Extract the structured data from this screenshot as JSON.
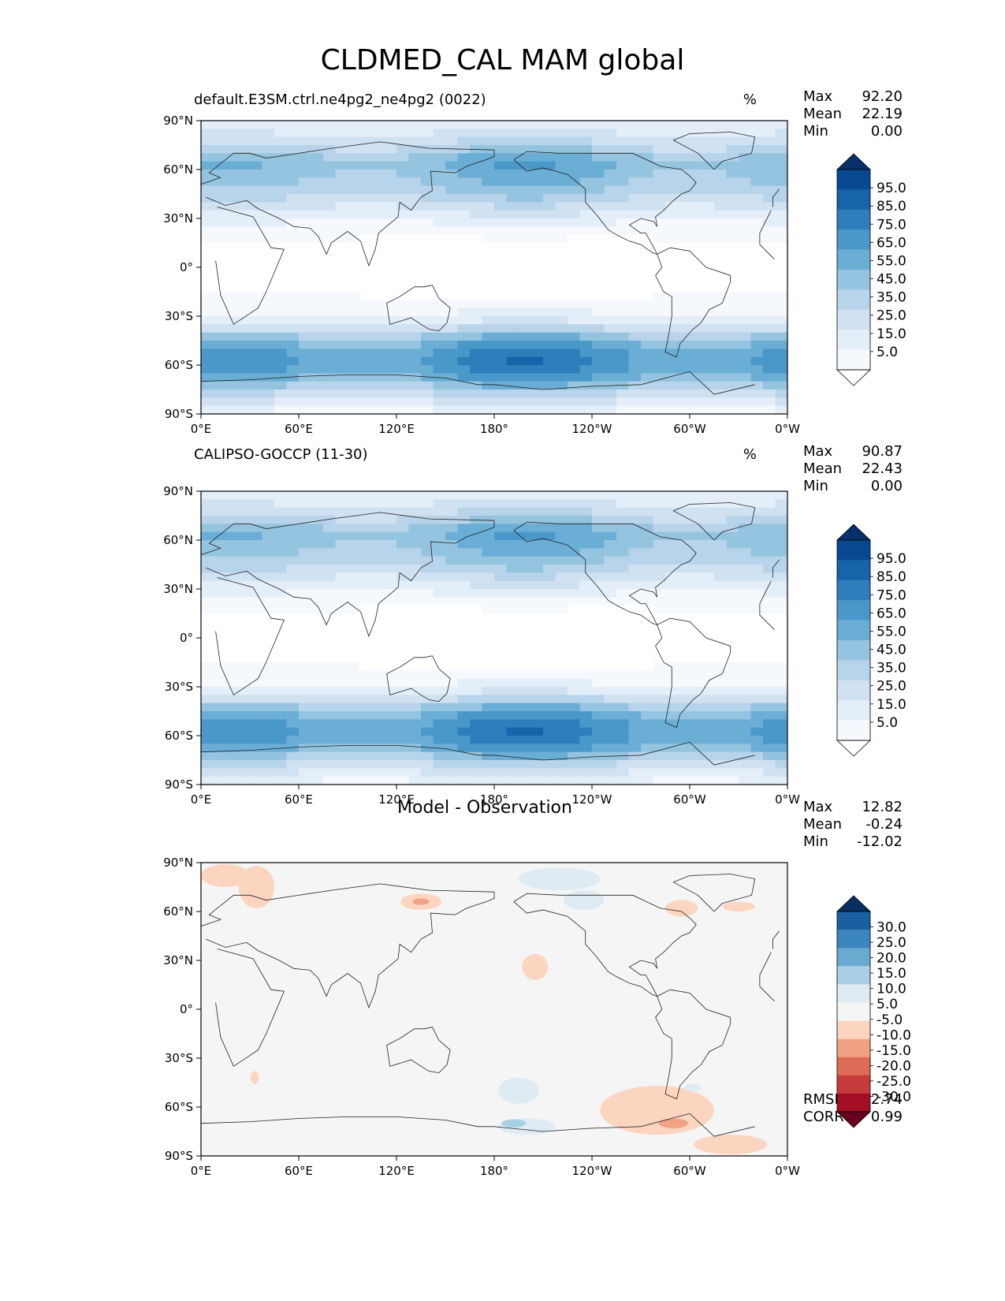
{
  "title": "CLDMED_CAL MAM global",
  "axes": {
    "lon_ticks": [
      "0°E",
      "60°E",
      "120°E",
      "180°",
      "120°W",
      "60°W",
      "0°W"
    ],
    "lat_ticks": [
      "90°N",
      "60°N",
      "30°N",
      "0°",
      "30°S",
      "60°S",
      "90°S"
    ]
  },
  "panels": [
    {
      "title": "default.E3SM.ctrl.ne4pg2_ne4pg2 (0022)",
      "unit": "%",
      "stats": [
        {
          "label": "Max",
          "value": "92.20"
        },
        {
          "label": "Mean",
          "value": "22.19"
        },
        {
          "label": "Min",
          "value": "0.00"
        }
      ],
      "colorbar_labels": [
        "95.0",
        "85.0",
        "75.0",
        "65.0",
        "55.0",
        "45.0",
        "35.0",
        "25.0",
        "15.0",
        "5.0"
      ]
    },
    {
      "title": "CALIPSO-GOCCP (11-30)",
      "unit": "%",
      "stats": [
        {
          "label": "Max",
          "value": "90.87"
        },
        {
          "label": "Mean",
          "value": "22.43"
        },
        {
          "label": "Min",
          "value": "0.00"
        }
      ],
      "colorbar_labels": [
        "95.0",
        "85.0",
        "75.0",
        "65.0",
        "55.0",
        "45.0",
        "35.0",
        "25.0",
        "15.0",
        "5.0"
      ]
    },
    {
      "title": "Model - Observation",
      "stats": [
        {
          "label": "Max",
          "value": "12.82"
        },
        {
          "label": "Mean",
          "value": "-0.24"
        },
        {
          "label": "Min",
          "value": "-12.02"
        }
      ],
      "colorbar_labels": [
        "30.0",
        "25.0",
        "20.0",
        "15.0",
        "10.0",
        "5.0",
        "-5.0",
        "-10.0",
        "-15.0",
        "-20.0",
        "-25.0",
        "-30.0"
      ],
      "extra_stats": [
        {
          "label": "RMSE",
          "value": "2.74"
        },
        {
          "label": "CORR",
          "value": "0.99"
        }
      ]
    }
  ],
  "chart_data": [
    {
      "type": "heatmap",
      "title": "default.E3SM.ctrl.ne4pg2_ne4pg2 (0022)",
      "unit": "%",
      "xlim": [
        0,
        360
      ],
      "ylim": [
        -90,
        90
      ],
      "levels": [
        0,
        5,
        15,
        25,
        35,
        45,
        55,
        65,
        75,
        85,
        95,
        100
      ],
      "colors": [
        "#ffffff",
        "#f5f9fe",
        "#e3eef9",
        "#d0e1f2",
        "#b7d4ea",
        "#94c4df",
        "#6aaed6",
        "#4a98c9",
        "#2e7ebc",
        "#1764ab",
        "#084a91",
        "#08306b"
      ],
      "zonal_profile": {
        "lat": [
          -90,
          -75,
          -65,
          -55,
          -45,
          -35,
          -25,
          -15,
          0,
          15,
          25,
          35,
          45,
          55,
          65,
          75,
          90
        ],
        "value": [
          10,
          40,
          65,
          70,
          55,
          25,
          10,
          5,
          3,
          5,
          12,
          25,
          40,
          50,
          55,
          35,
          15
        ]
      },
      "stats": {
        "max": 92.2,
        "mean": 22.19,
        "min": 0.0
      }
    },
    {
      "type": "heatmap",
      "title": "CALIPSO-GOCCP (11-30)",
      "unit": "%",
      "xlim": [
        0,
        360
      ],
      "ylim": [
        -90,
        90
      ],
      "levels": [
        0,
        5,
        15,
        25,
        35,
        45,
        55,
        65,
        75,
        85,
        95,
        100
      ],
      "colors": [
        "#ffffff",
        "#f5f9fe",
        "#e3eef9",
        "#d0e1f2",
        "#b7d4ea",
        "#94c4df",
        "#6aaed6",
        "#4a98c9",
        "#2e7ebc",
        "#1764ab",
        "#084a91",
        "#08306b"
      ],
      "zonal_profile": {
        "lat": [
          -90,
          -75,
          -65,
          -55,
          -45,
          -35,
          -25,
          -15,
          0,
          15,
          25,
          35,
          45,
          55,
          65,
          75,
          90
        ],
        "value": [
          12,
          40,
          65,
          70,
          55,
          25,
          10,
          5,
          3,
          5,
          12,
          25,
          40,
          50,
          55,
          35,
          15
        ]
      },
      "stats": {
        "max": 90.87,
        "mean": 22.43,
        "min": 0.0
      }
    },
    {
      "type": "heatmap",
      "title": "Model - Observation",
      "xlim": [
        0,
        360
      ],
      "ylim": [
        -90,
        90
      ],
      "levels": [
        -35,
        -30,
        -25,
        -20,
        -15,
        -10,
        -5,
        5,
        10,
        15,
        20,
        25,
        30,
        35
      ],
      "colors": [
        "#67001f",
        "#a50f26",
        "#c63b3b",
        "#dd6b55",
        "#f0a283",
        "#fbd5c0",
        "#f5f5f5",
        "#deebf2",
        "#a9cfe4",
        "#6aaad0",
        "#3b86bc",
        "#1a5fa0",
        "#053061"
      ],
      "background_value": 0,
      "anomalies": [
        {
          "lon": 15,
          "lat": 82,
          "value": -6,
          "w": 30,
          "h": 14
        },
        {
          "lon": 34,
          "lat": 75,
          "value": -6,
          "w": 22,
          "h": 26
        },
        {
          "lon": 135,
          "lat": 66,
          "value": -7,
          "w": 25,
          "h": 10
        },
        {
          "lon": 135,
          "lat": 66,
          "value": -11,
          "w": 10,
          "h": 4
        },
        {
          "lon": 205,
          "lat": 26,
          "value": -7,
          "w": 16,
          "h": 16
        },
        {
          "lon": 220,
          "lat": 80,
          "value": 7,
          "w": 50,
          "h": 14
        },
        {
          "lon": 235,
          "lat": 67,
          "value": 6,
          "w": 25,
          "h": 12
        },
        {
          "lon": 295,
          "lat": 62,
          "value": -7,
          "w": 20,
          "h": 10
        },
        {
          "lon": 330,
          "lat": 63,
          "value": -6,
          "w": 20,
          "h": 6
        },
        {
          "lon": 195,
          "lat": -50,
          "value": 6,
          "w": 25,
          "h": 16
        },
        {
          "lon": 200,
          "lat": -72,
          "value": 7,
          "w": 35,
          "h": 10
        },
        {
          "lon": 192,
          "lat": -70,
          "value": 11,
          "w": 15,
          "h": 5
        },
        {
          "lon": 280,
          "lat": -62,
          "value": -7,
          "w": 70,
          "h": 30
        },
        {
          "lon": 290,
          "lat": -70,
          "value": -12,
          "w": 18,
          "h": 6
        },
        {
          "lon": 325,
          "lat": -83,
          "value": -6,
          "w": 45,
          "h": 12
        },
        {
          "lon": 33,
          "lat": -42,
          "value": -7,
          "w": 5,
          "h": 8
        },
        {
          "lon": 302,
          "lat": -48,
          "value": 6,
          "w": 10,
          "h": 5
        }
      ],
      "stats": {
        "max": 12.82,
        "mean": -0.24,
        "min": -12.02,
        "rmse": 2.74,
        "corr": 0.99
      }
    }
  ]
}
